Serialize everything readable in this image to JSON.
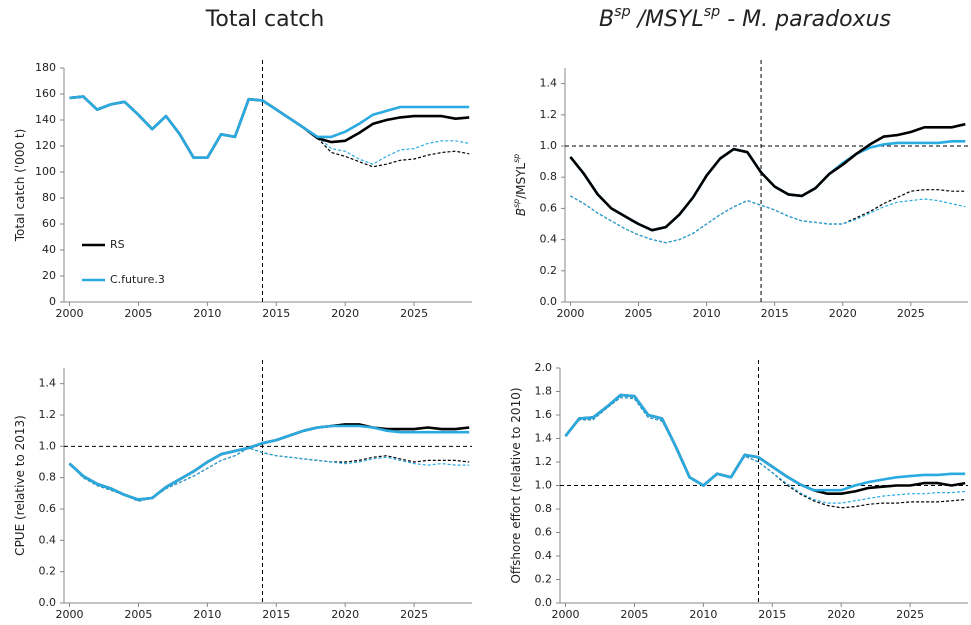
{
  "chart_data": [
    {
      "type": "line",
      "title": [
        {
          "text": "Total catch"
        }
      ],
      "ylabel": [
        {
          "text": "Total catch ('000 t)"
        }
      ],
      "x": [
        2000,
        2001,
        2002,
        2003,
        2004,
        2005,
        2006,
        2007,
        2008,
        2009,
        2010,
        2011,
        2012,
        2013,
        2014,
        2015,
        2016,
        2017,
        2018,
        2019,
        2020,
        2021,
        2022,
        2023,
        2024,
        2025,
        2026,
        2027,
        2028,
        2029
      ],
      "xlim": [
        1999.6,
        2029.2
      ],
      "xticks": [
        2000,
        2005,
        2010,
        2015,
        2020,
        2025
      ],
      "ylim": [
        0,
        180
      ],
      "yticks": [
        0,
        20,
        40,
        60,
        80,
        100,
        120,
        140,
        160,
        180
      ],
      "vline": 2014,
      "legend": "lower left",
      "series": [
        {
          "color": "#000000",
          "dashed": true,
          "values": [
            null,
            null,
            null,
            null,
            null,
            null,
            null,
            null,
            null,
            null,
            null,
            null,
            null,
            null,
            null,
            null,
            null,
            null,
            126,
            115,
            112,
            108,
            104,
            106,
            109,
            110,
            113,
            115,
            116,
            114
          ]
        },
        {
          "color": "#29abe2",
          "dashed": true,
          "values": [
            null,
            null,
            null,
            null,
            null,
            null,
            null,
            null,
            null,
            null,
            null,
            null,
            null,
            null,
            null,
            null,
            null,
            null,
            127,
            118,
            116,
            110,
            106,
            112,
            117,
            118,
            122,
            124,
            124,
            122
          ]
        },
        {
          "name": "RS",
          "color": "#000000",
          "values": [
            157,
            158,
            148,
            152,
            154,
            144,
            133,
            143,
            129,
            111,
            111,
            129,
            127,
            156,
            155,
            148,
            141,
            134,
            126,
            123,
            124,
            130,
            137,
            140,
            142,
            143,
            143,
            143,
            141,
            142
          ]
        },
        {
          "name": "C.future.3",
          "color": "#29abe2",
          "values": [
            157,
            158,
            148,
            152,
            154,
            144,
            133,
            143,
            129,
            111,
            111,
            129,
            127,
            156,
            155,
            148,
            141,
            134,
            127,
            127,
            131,
            137,
            144,
            147,
            150,
            150,
            150,
            150,
            150,
            150
          ]
        }
      ]
    },
    {
      "type": "line",
      "title": [
        {
          "text": "B",
          "italic": true
        },
        {
          "text": "sp",
          "italic": true,
          "sup": true
        },
        {
          "text": " /MSYL",
          "italic": true
        },
        {
          "text": "sp",
          "italic": true,
          "sup": true
        },
        {
          "text": " - M. paradoxus",
          "italic": true
        }
      ],
      "ylabel": [
        {
          "text": "B",
          "italic": true
        },
        {
          "text": "sp",
          "italic": true,
          "sup": true
        },
        {
          "text": "/MSYL"
        },
        {
          "text": "sp",
          "italic": true,
          "sup": true
        }
      ],
      "x": [
        2000,
        2001,
        2002,
        2003,
        2004,
        2005,
        2006,
        2007,
        2008,
        2009,
        2010,
        2011,
        2012,
        2013,
        2014,
        2015,
        2016,
        2017,
        2018,
        2019,
        2020,
        2021,
        2022,
        2023,
        2024,
        2025,
        2026,
        2027,
        2028,
        2029
      ],
      "xlim": [
        1999.6,
        2029.2
      ],
      "xticks": [
        2000,
        2005,
        2010,
        2015,
        2020,
        2025
      ],
      "ylim": [
        0,
        1.5
      ],
      "yticks": [
        {
          "value": 0,
          "label": "0.0"
        },
        0.2,
        0.4,
        0.6,
        0.8,
        {
          "value": 1,
          "label": "1.0"
        },
        1.2,
        1.4
      ],
      "vline": 2014,
      "hline": 1,
      "series": [
        {
          "color": "#000000",
          "dashed": true,
          "values": [
            0.68,
            0.63,
            0.57,
            0.52,
            0.47,
            0.43,
            0.4,
            0.38,
            0.4,
            0.44,
            0.5,
            0.56,
            0.61,
            0.65,
            0.62,
            0.59,
            0.55,
            0.52,
            0.51,
            0.5,
            0.5,
            0.54,
            0.58,
            0.63,
            0.67,
            0.71,
            0.72,
            0.72,
            0.71,
            0.71
          ]
        },
        {
          "color": "#29abe2",
          "dashed": true,
          "values": [
            0.68,
            0.63,
            0.57,
            0.52,
            0.47,
            0.43,
            0.4,
            0.38,
            0.4,
            0.44,
            0.5,
            0.56,
            0.61,
            0.65,
            0.62,
            0.59,
            0.55,
            0.52,
            0.51,
            0.5,
            0.5,
            0.53,
            0.57,
            0.61,
            0.64,
            0.65,
            0.66,
            0.65,
            0.63,
            0.61
          ]
        },
        {
          "name": "C.future.3",
          "color": "#29abe2",
          "values": [
            0.93,
            0.82,
            0.69,
            0.6,
            0.55,
            0.5,
            0.46,
            0.48,
            0.56,
            0.67,
            0.81,
            0.92,
            0.98,
            0.96,
            0.83,
            0.74,
            0.69,
            0.68,
            0.73,
            0.82,
            0.89,
            0.95,
            0.99,
            1.01,
            1.02,
            1.02,
            1.02,
            1.02,
            1.03,
            1.03
          ]
        },
        {
          "name": "RS",
          "color": "#000000",
          "values": [
            0.93,
            0.82,
            0.69,
            0.6,
            0.55,
            0.5,
            0.46,
            0.48,
            0.56,
            0.67,
            0.81,
            0.92,
            0.98,
            0.96,
            0.83,
            0.74,
            0.69,
            0.68,
            0.73,
            0.82,
            0.88,
            0.95,
            1.01,
            1.06,
            1.07,
            1.09,
            1.12,
            1.12,
            1.12,
            1.14
          ]
        }
      ]
    },
    {
      "type": "line",
      "ylabel": [
        {
          "text": "CPUE (relative to 2013)"
        }
      ],
      "x": [
        2000,
        2001,
        2002,
        2003,
        2004,
        2005,
        2006,
        2007,
        2008,
        2009,
        2010,
        2011,
        2012,
        2013,
        2014,
        2015,
        2016,
        2017,
        2018,
        2019,
        2020,
        2021,
        2022,
        2023,
        2024,
        2025,
        2026,
        2027,
        2028,
        2029
      ],
      "xlim": [
        1999.6,
        2029.2
      ],
      "xticks": [
        2000,
        2005,
        2010,
        2015,
        2020,
        2025
      ],
      "ylim": [
        0,
        1.5
      ],
      "yticks": [
        {
          "value": 0,
          "label": "0.0"
        },
        0.2,
        0.4,
        0.6,
        0.8,
        {
          "value": 1,
          "label": "1.0"
        },
        1.2,
        1.4
      ],
      "vline": 2014,
      "hline": 1,
      "series": [
        {
          "color": "#000000",
          "dashed": true,
          "values": [
            0.89,
            0.8,
            0.75,
            0.72,
            0.69,
            0.65,
            0.67,
            0.73,
            0.77,
            0.81,
            0.86,
            0.91,
            0.94,
            0.99,
            0.96,
            0.94,
            0.93,
            0.92,
            0.91,
            0.9,
            0.9,
            0.91,
            0.93,
            0.94,
            0.92,
            0.9,
            0.91,
            0.91,
            0.91,
            0.9
          ]
        },
        {
          "color": "#29abe2",
          "dashed": true,
          "values": [
            0.89,
            0.8,
            0.75,
            0.72,
            0.69,
            0.65,
            0.67,
            0.73,
            0.77,
            0.81,
            0.86,
            0.91,
            0.94,
            0.99,
            0.96,
            0.94,
            0.93,
            0.92,
            0.91,
            0.9,
            0.89,
            0.9,
            0.92,
            0.93,
            0.91,
            0.89,
            0.88,
            0.89,
            0.88,
            0.88
          ]
        },
        {
          "name": "RS",
          "color": "#000000",
          "values": [
            0.89,
            0.81,
            0.76,
            0.73,
            0.69,
            0.66,
            0.67,
            0.74,
            0.79,
            0.84,
            0.9,
            0.95,
            0.97,
            0.99,
            1.02,
            1.04,
            1.07,
            1.1,
            1.12,
            1.13,
            1.14,
            1.14,
            1.12,
            1.11,
            1.11,
            1.11,
            1.12,
            1.11,
            1.11,
            1.12
          ]
        },
        {
          "name": "C.future.3",
          "color": "#29abe2",
          "values": [
            0.89,
            0.81,
            0.76,
            0.73,
            0.69,
            0.66,
            0.67,
            0.74,
            0.79,
            0.84,
            0.9,
            0.95,
            0.97,
            0.99,
            1.02,
            1.04,
            1.07,
            1.1,
            1.12,
            1.13,
            1.13,
            1.13,
            1.12,
            1.1,
            1.09,
            1.09,
            1.09,
            1.09,
            1.09,
            1.09
          ]
        }
      ]
    },
    {
      "type": "line",
      "ylabel": [
        {
          "text": "Offshore effort (relative to 2010)"
        }
      ],
      "x": [
        2000,
        2001,
        2002,
        2003,
        2004,
        2005,
        2006,
        2007,
        2008,
        2009,
        2010,
        2011,
        2012,
        2013,
        2014,
        2015,
        2016,
        2017,
        2018,
        2019,
        2020,
        2021,
        2022,
        2023,
        2024,
        2025,
        2026,
        2027,
        2028,
        2029
      ],
      "xlim": [
        1999.6,
        2029.2
      ],
      "xticks": [
        2000,
        2005,
        2010,
        2015,
        2020,
        2025
      ],
      "ylim": [
        0,
        2
      ],
      "yticks": [
        {
          "value": 0,
          "label": "0.0"
        },
        0.2,
        0.4,
        0.6,
        0.8,
        {
          "value": 1,
          "label": "1.0"
        },
        1.2,
        1.4,
        1.6,
        1.8,
        {
          "value": 2,
          "label": "2.0"
        }
      ],
      "vline": 2014,
      "hline": 1,
      "series": [
        {
          "color": "#000000",
          "dashed": true,
          "values": [
            1.42,
            1.56,
            1.56,
            1.66,
            1.75,
            1.74,
            1.58,
            1.55,
            1.33,
            1.07,
            1,
            1.1,
            1.07,
            1.25,
            1.2,
            1.11,
            1.01,
            0.93,
            0.87,
            0.83,
            0.81,
            0.82,
            0.84,
            0.85,
            0.85,
            0.86,
            0.86,
            0.86,
            0.87,
            0.88
          ]
        },
        {
          "color": "#29abe2",
          "dashed": true,
          "values": [
            1.42,
            1.56,
            1.56,
            1.66,
            1.75,
            1.74,
            1.58,
            1.55,
            1.33,
            1.07,
            1,
            1.1,
            1.07,
            1.25,
            1.2,
            1.11,
            1.02,
            0.94,
            0.88,
            0.85,
            0.85,
            0.87,
            0.89,
            0.91,
            0.92,
            0.93,
            0.93,
            0.94,
            0.94,
            0.95
          ]
        },
        {
          "name": "RS",
          "color": "#000000",
          "values": [
            1.42,
            1.57,
            1.58,
            1.67,
            1.77,
            1.76,
            1.6,
            1.57,
            1.33,
            1.07,
            1,
            1.1,
            1.07,
            1.26,
            1.24,
            1.16,
            1.08,
            1.01,
            0.96,
            0.93,
            0.93,
            0.95,
            0.98,
            0.99,
            1,
            1,
            1.02,
            1.02,
            1,
            1.02
          ]
        },
        {
          "name": "C.future.3",
          "color": "#29abe2",
          "values": [
            1.42,
            1.57,
            1.58,
            1.67,
            1.77,
            1.76,
            1.6,
            1.57,
            1.33,
            1.07,
            1,
            1.1,
            1.07,
            1.26,
            1.24,
            1.16,
            1.08,
            1.01,
            0.96,
            0.96,
            0.96,
            1,
            1.03,
            1.05,
            1.07,
            1.08,
            1.09,
            1.09,
            1.1,
            1.1
          ]
        }
      ]
    }
  ]
}
